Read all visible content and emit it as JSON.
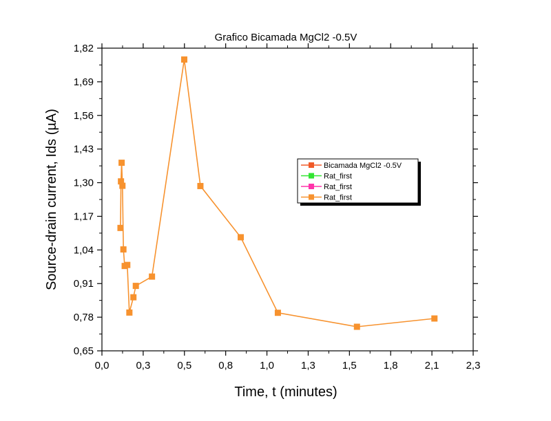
{
  "colors": {
    "series": [
      "#f05a28",
      "#33e533",
      "#ff33aa",
      "#f7922e"
    ],
    "line": "#f7922e",
    "marker": "#f7922e"
  },
  "chart_data": {
    "type": "line",
    "title": "Grafico Bicamada MgCl2 -0.5V",
    "xlabel": "Time, t (minutes)",
    "ylabel": "Source-drain current, Ids (µA)",
    "xlim": [
      0.0,
      2.3
    ],
    "ylim": [
      0.65,
      1.82
    ],
    "xticks": [
      "0,0",
      "0,3",
      "0,5",
      "0,8",
      "1,0",
      "1,3",
      "1,5",
      "1,8",
      "2,1",
      "2,3"
    ],
    "yticks": [
      "0,65",
      "0,78",
      "0,91",
      "1,04",
      "1,17",
      "1,30",
      "1,43",
      "1,56",
      "1,69",
      "1,82"
    ],
    "grid": false,
    "legend_position": "right",
    "legend": [
      "Bicamada MgCl2 -0.5V",
      "Rat_first",
      "Rat_first",
      "Rat_first"
    ],
    "series": [
      {
        "name": "Rat_first",
        "x": [
          0.115,
          0.118,
          0.122,
          0.127,
          0.133,
          0.141,
          0.157,
          0.17,
          0.195,
          0.21,
          0.31,
          0.51,
          0.61,
          0.86,
          1.09,
          1.58,
          2.06
        ],
        "y": [
          1.125,
          1.305,
          1.377,
          1.288,
          1.042,
          0.978,
          0.982,
          0.798,
          0.857,
          0.901,
          0.937,
          1.776,
          1.287,
          1.089,
          0.797,
          0.743,
          0.775
        ]
      }
    ]
  }
}
